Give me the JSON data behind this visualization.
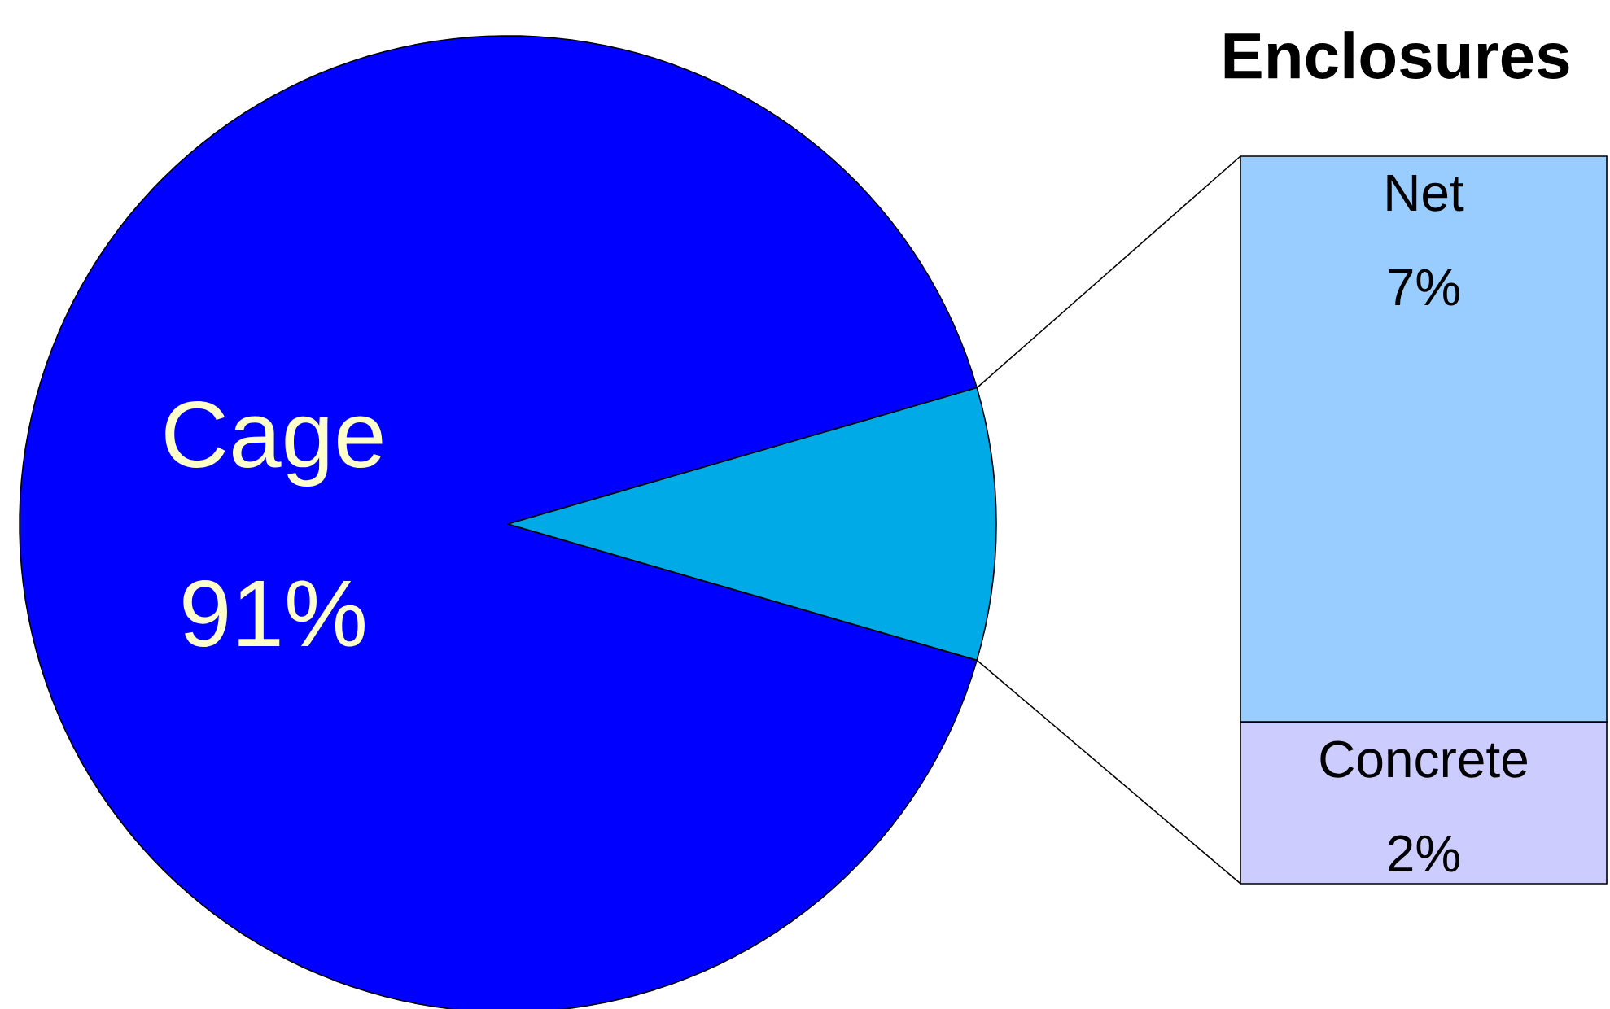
{
  "chart_data": [
    {
      "type": "pie",
      "categories": [
        "Cage",
        null
      ],
      "values": [
        91,
        9
      ],
      "colors": [
        "#0000ff",
        "#00aae6"
      ],
      "value_labels": [
        "91%",
        null
      ]
    },
    {
      "type": "bar",
      "title": "Enclosures",
      "stacked": true,
      "categories": [
        null
      ],
      "series": [
        {
          "name": "Concrete",
          "color": "#ccccff",
          "values": [
            2
          ],
          "value_labels": [
            "2%"
          ]
        },
        {
          "name": "Net",
          "color": "#99ccff",
          "values": [
            7
          ],
          "value_labels": [
            "7%"
          ]
        }
      ]
    }
  ]
}
